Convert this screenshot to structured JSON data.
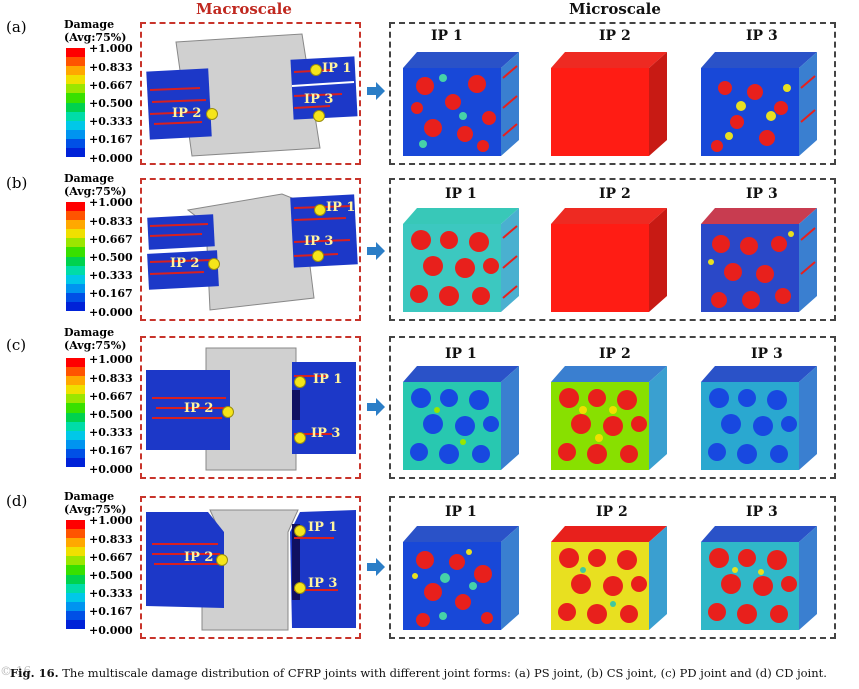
{
  "headers": {
    "macroscale": "Macroscale",
    "microscale": "Microscale"
  },
  "legend": {
    "title_line1": "Damage",
    "title_line2": "(Avg:75%)",
    "ticks": [
      "+1.000",
      "+0.833",
      "+0.667",
      "+0.500",
      "+0.333",
      "+0.167",
      "+0.000"
    ],
    "colors": [
      "#ff0000",
      "#ff5400",
      "#ffa800",
      "#f0e000",
      "#9be600",
      "#38e000",
      "#00d24e",
      "#00dca8",
      "#00c8e8",
      "#0094f0",
      "#0050e6",
      "#0022d8"
    ]
  },
  "point_labels": {
    "ip1": "IP 1",
    "ip2": "IP 2",
    "ip3": "IP 3"
  },
  "rows": [
    {
      "label": "(a)",
      "joint": "PS"
    },
    {
      "label": "(b)",
      "joint": "CS"
    },
    {
      "label": "(c)",
      "joint": "PD"
    },
    {
      "label": "(d)",
      "joint": "CD"
    }
  ],
  "caption": {
    "fig": "Fig. 16.",
    "text": "The multiscale damage distribution of CFRP joints with different joint forms: (a) PS joint, (b) CS joint, (c) PD joint and (d) CD joint."
  },
  "watermark": "© 16"
}
